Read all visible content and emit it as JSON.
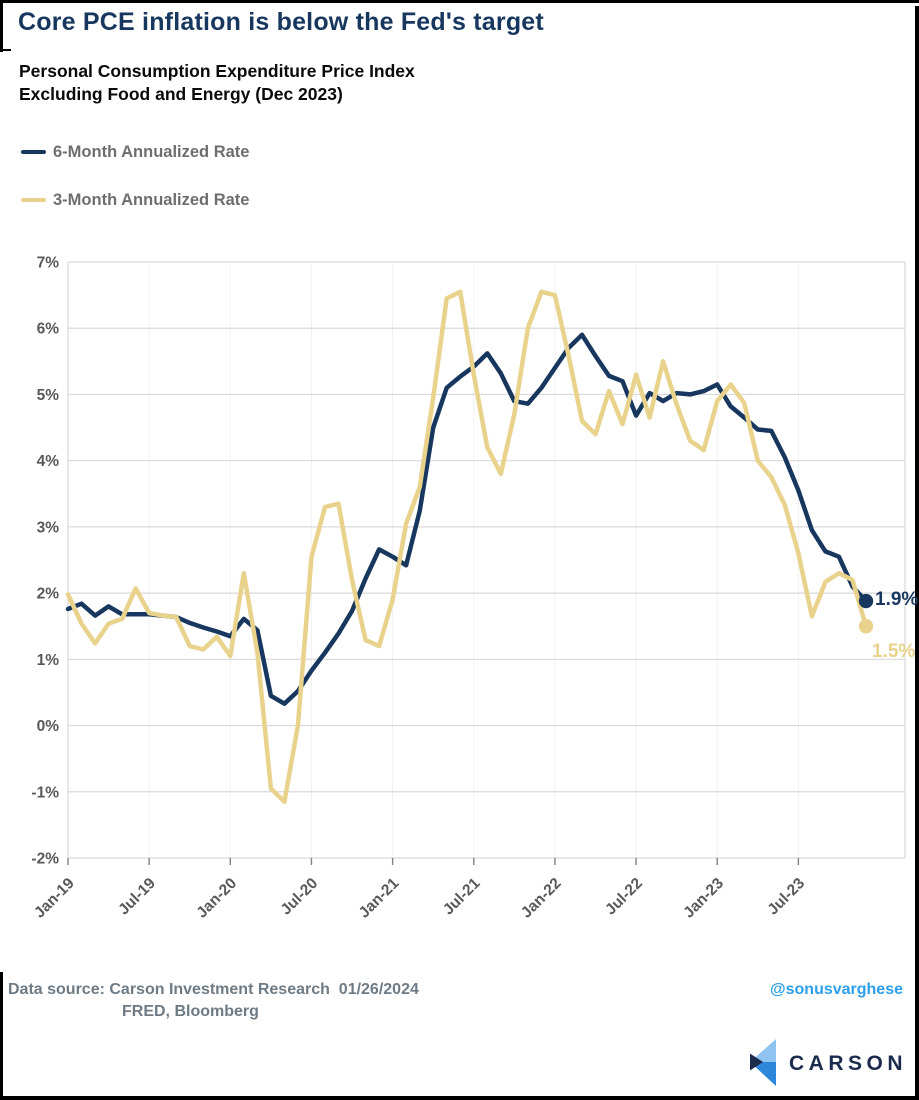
{
  "title": "Core PCE inflation is below the Fed's target",
  "subtitle_line1": "Personal Consumption Expenditure Price Index",
  "subtitle_line2": "Excluding Food and Energy (Dec 2023)",
  "legend": [
    {
      "label": "6-Month Annualized Rate",
      "color": "#17375E"
    },
    {
      "label": "3-Month Annualized Rate",
      "color": "#E9D28B"
    }
  ],
  "chart_data": {
    "type": "line",
    "title": "Core PCE inflation is below the Fed's target",
    "subtitle": "Personal Consumption Expenditure Price Index Excluding Food and Energy (Dec 2023)",
    "ylim": [
      -2,
      7
    ],
    "grid": "horizontal",
    "legend_position": "top-left",
    "y_tick_values": [
      7,
      6,
      5,
      4,
      3,
      2,
      1,
      0,
      -1,
      -2
    ],
    "y_tick_labels": [
      "7%",
      "6%",
      "5%",
      "4%",
      "3%",
      "2%",
      "1%",
      "0%",
      "-1%",
      "-2%"
    ],
    "x_tick_month_indices": [
      0,
      6,
      12,
      18,
      24,
      30,
      36,
      42,
      48,
      54
    ],
    "x_tick_labels": [
      "Jan-19",
      "Jul-19",
      "Jan-20",
      "Jul-20",
      "Jan-21",
      "Jul-21",
      "Jan-22",
      "Jul-22",
      "Jan-23",
      "Jul-23"
    ],
    "x": [
      "Jan-19",
      "Feb-19",
      "Mar-19",
      "Apr-19",
      "May-19",
      "Jun-19",
      "Jul-19",
      "Aug-19",
      "Sep-19",
      "Oct-19",
      "Nov-19",
      "Dec-19",
      "Jan-20",
      "Feb-20",
      "Mar-20",
      "Apr-20",
      "May-20",
      "Jun-20",
      "Jul-20",
      "Aug-20",
      "Sep-20",
      "Oct-20",
      "Nov-20",
      "Dec-20",
      "Jan-21",
      "Feb-21",
      "Mar-21",
      "Apr-21",
      "May-21",
      "Jun-21",
      "Jul-21",
      "Aug-21",
      "Sep-21",
      "Oct-21",
      "Nov-21",
      "Dec-21",
      "Jan-22",
      "Feb-22",
      "Mar-22",
      "Apr-22",
      "May-22",
      "Jun-22",
      "Jul-22",
      "Aug-22",
      "Sep-22",
      "Oct-22",
      "Nov-22",
      "Dec-22",
      "Jan-23",
      "Feb-23",
      "Mar-23",
      "Apr-23",
      "May-23",
      "Jun-23",
      "Jul-23",
      "Aug-23",
      "Sep-23",
      "Oct-23",
      "Nov-23",
      "Dec-23"
    ],
    "series": [
      {
        "name": "6-Month Annualized Rate",
        "color": "#17375E",
        "values": [
          1.76,
          1.84,
          1.66,
          1.8,
          1.68,
          1.68,
          1.68,
          1.66,
          1.64,
          1.55,
          1.48,
          1.42,
          1.35,
          1.61,
          1.44,
          0.45,
          0.33,
          0.52,
          0.83,
          1.1,
          1.39,
          1.73,
          2.22,
          2.66,
          2.55,
          2.42,
          3.24,
          4.5,
          5.1,
          5.27,
          5.42,
          5.62,
          5.32,
          4.9,
          4.86,
          5.1,
          5.4,
          5.7,
          5.9,
          5.58,
          5.28,
          5.2,
          4.68,
          5.02,
          4.9,
          5.02,
          5.0,
          5.05,
          5.15,
          4.82,
          4.65,
          4.47,
          4.45,
          4.05,
          3.55,
          2.95,
          2.63,
          2.55,
          2.1,
          1.88
        ]
      },
      {
        "name": "3-Month Annualized Rate",
        "color": "#E9D28B",
        "values": [
          1.98,
          1.54,
          1.24,
          1.54,
          1.61,
          2.07,
          1.7,
          1.66,
          1.64,
          1.2,
          1.15,
          1.34,
          1.05,
          2.3,
          1.1,
          -0.95,
          -1.15,
          0.0,
          2.55,
          3.3,
          3.35,
          2.2,
          1.29,
          1.2,
          1.9,
          3.05,
          3.6,
          4.95,
          6.45,
          6.55,
          5.3,
          4.2,
          3.8,
          4.7,
          6.0,
          6.55,
          6.5,
          5.6,
          4.6,
          4.4,
          5.05,
          4.55,
          5.3,
          4.65,
          5.5,
          4.85,
          4.3,
          4.16,
          4.9,
          5.15,
          4.87,
          4.0,
          3.75,
          3.33,
          2.6,
          1.65,
          2.17,
          2.3,
          2.2,
          1.5
        ]
      }
    ],
    "end_labels": [
      {
        "text": "1.9%",
        "series": "6-Month Annualized Rate",
        "color": "#17375E"
      },
      {
        "text": "1.5%",
        "series": "3-Month Annualized Rate",
        "color": "#E9D28B"
      }
    ]
  },
  "footer": {
    "source_line1": "Data source: Carson Investment Research  01/26/2024",
    "source_line2": "FRED, Bloomberg",
    "handle": "@sonusvarghese"
  },
  "logo": {
    "wordmark": "CARSON"
  },
  "colors": {
    "accent_navy": "#17375E",
    "accent_yellow": "#E9D28B",
    "axis_text": "#595959",
    "grid_line": "#D9D9D9",
    "footer_text": "#6E7B85",
    "handle_blue": "#2D9FE8",
    "logo_light_blue": "#8FC3F0",
    "logo_mid_blue": "#2F87DC",
    "logo_navy": "#1B2B4D"
  }
}
